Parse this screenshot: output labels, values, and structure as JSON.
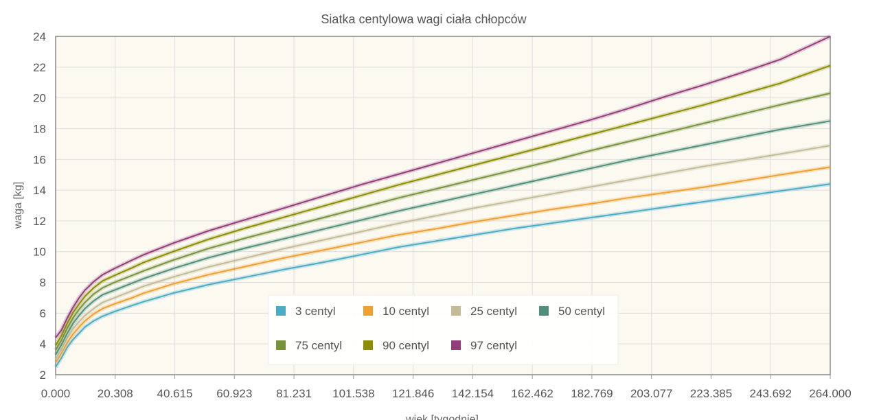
{
  "chart_data": {
    "type": "line",
    "title": "Siatka centylowa wagi ciała chłopców",
    "xlabel": "wiek [tygodnie]",
    "ylabel": "waga [kg]",
    "xlim": [
      0,
      264
    ],
    "ylim": [
      2,
      24
    ],
    "x_ticks": [
      "0.000",
      "20.308",
      "40.615",
      "60.923",
      "81.231",
      "101.538",
      "121.846",
      "142.154",
      "162.462",
      "182.769",
      "203.077",
      "223.385",
      "243.692",
      "264.000"
    ],
    "y_ticks": [
      "2",
      "4",
      "6",
      "8",
      "10",
      "12",
      "14",
      "16",
      "18",
      "20",
      "22",
      "24"
    ],
    "grid": true,
    "legend_position": "bottom-center, inside plot",
    "plot_background": "#fbf9f0",
    "grid_color": "#dddddd",
    "x": [
      0,
      2,
      4,
      6,
      8,
      10,
      13,
      16,
      20,
      26,
      30,
      40,
      52,
      65,
      78,
      91,
      104,
      117,
      130,
      143,
      156,
      169,
      182,
      195,
      208,
      221,
      234,
      247,
      264
    ],
    "series": [
      {
        "name": "3 centyl",
        "color": "#4bacc6",
        "values": [
          2.5,
          3.1,
          3.8,
          4.3,
          4.7,
          5.1,
          5.5,
          5.8,
          6.1,
          6.5,
          6.75,
          7.3,
          7.85,
          8.35,
          8.85,
          9.3,
          9.8,
          10.3,
          10.7,
          11.1,
          11.5,
          11.85,
          12.2,
          12.55,
          12.9,
          13.25,
          13.6,
          13.95,
          14.4
        ]
      },
      {
        "name": "10 centyl",
        "color": "#f0a030",
        "values": [
          2.8,
          3.4,
          4.1,
          4.65,
          5.1,
          5.5,
          5.95,
          6.3,
          6.6,
          7.0,
          7.3,
          7.9,
          8.5,
          9.05,
          9.6,
          10.1,
          10.6,
          11.1,
          11.5,
          11.95,
          12.35,
          12.75,
          13.1,
          13.5,
          13.85,
          14.2,
          14.6,
          15.0,
          15.5
        ]
      },
      {
        "name": "25 centyl",
        "color": "#c4bc96",
        "values": [
          3.0,
          3.65,
          4.4,
          5.0,
          5.45,
          5.85,
          6.3,
          6.7,
          7.0,
          7.45,
          7.75,
          8.35,
          9.0,
          9.6,
          10.2,
          10.75,
          11.3,
          11.85,
          12.35,
          12.85,
          13.3,
          13.75,
          14.2,
          14.65,
          15.1,
          15.55,
          15.95,
          16.35,
          16.9
        ]
      },
      {
        "name": "50 centyl",
        "color": "#4f8f7c",
        "values": [
          3.3,
          3.95,
          4.7,
          5.35,
          5.85,
          6.3,
          6.8,
          7.2,
          7.5,
          7.95,
          8.25,
          8.9,
          9.6,
          10.25,
          10.85,
          11.45,
          12.05,
          12.65,
          13.2,
          13.75,
          14.3,
          14.85,
          15.4,
          15.95,
          16.45,
          16.95,
          17.45,
          17.95,
          18.5
        ]
      },
      {
        "name": "75 centyl",
        "color": "#77933c",
        "values": [
          3.6,
          4.25,
          5.05,
          5.7,
          6.25,
          6.7,
          7.25,
          7.65,
          8.0,
          8.45,
          8.75,
          9.45,
          10.2,
          10.9,
          11.55,
          12.2,
          12.85,
          13.5,
          14.1,
          14.7,
          15.3,
          15.9,
          16.55,
          17.15,
          17.75,
          18.35,
          18.95,
          19.55,
          20.3
        ]
      },
      {
        "name": "90 centyl",
        "color": "#8c8c00",
        "values": [
          3.9,
          4.55,
          5.35,
          6.05,
          6.6,
          7.1,
          7.65,
          8.1,
          8.45,
          8.95,
          9.3,
          10.0,
          10.8,
          11.55,
          12.25,
          12.95,
          13.65,
          14.35,
          15.0,
          15.65,
          16.3,
          16.95,
          17.6,
          18.25,
          18.9,
          19.55,
          20.25,
          20.95,
          22.1
        ]
      },
      {
        "name": "97 centyl",
        "color": "#953c7b",
        "values": [
          4.4,
          4.9,
          5.7,
          6.4,
          7.0,
          7.5,
          8.05,
          8.5,
          8.9,
          9.45,
          9.8,
          10.55,
          11.35,
          12.1,
          12.85,
          13.6,
          14.35,
          15.05,
          15.75,
          16.45,
          17.15,
          17.85,
          18.55,
          19.3,
          20.1,
          20.85,
          21.65,
          22.5,
          24.0
        ]
      }
    ]
  }
}
